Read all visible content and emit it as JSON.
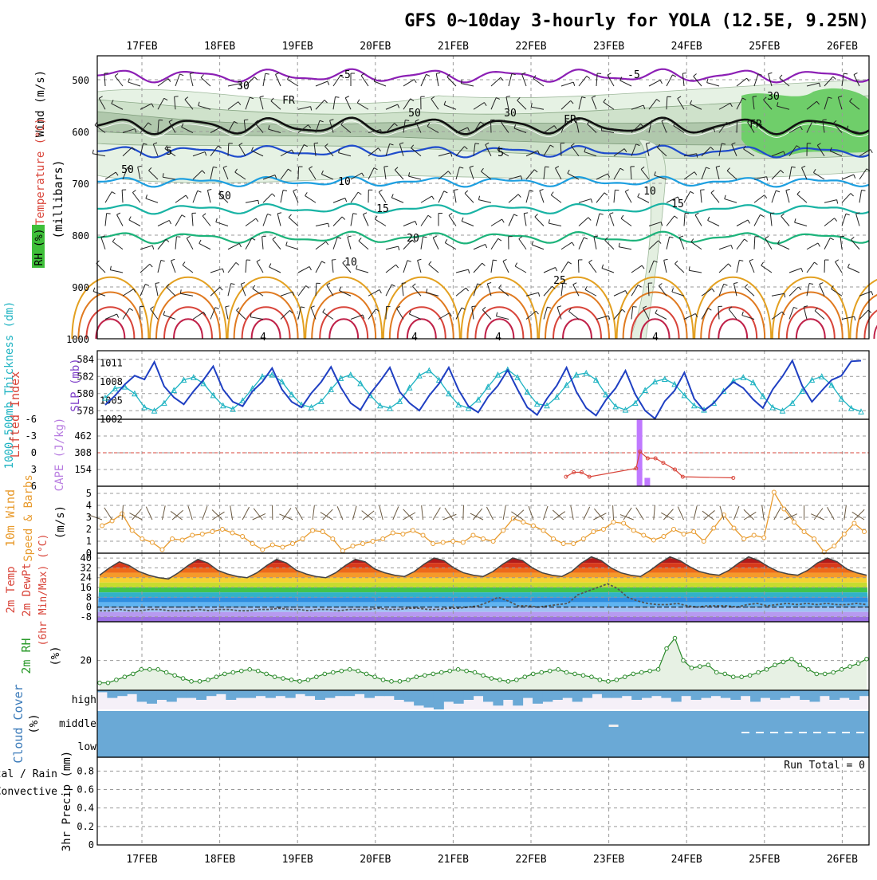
{
  "page": {
    "title": "GFS 0~10day 3-hourly for YOLA (12.5E, 9.25N)"
  },
  "chart_data": {
    "type": "meteogram",
    "dates": [
      "17FEB",
      "18FEB",
      "19FEB",
      "20FEB",
      "21FEB",
      "22FEB",
      "23FEB",
      "24FEB",
      "25FEB",
      "26FEB"
    ],
    "panels": {
      "upper": {
        "ylabel": "(millibars)",
        "legend": [
          "Wind (m/s)",
          "Temperature (°C)",
          "RH (%)"
        ],
        "pressure_ticks": [
          "500",
          "600",
          "700",
          "800",
          "900",
          "1000"
        ],
        "isotherm_labels": [
          "-5",
          "-5",
          "FR",
          "FR",
          "FR",
          "5",
          "5",
          "10",
          "10",
          "15",
          "15",
          "20",
          "25",
          "4",
          "4",
          "4",
          "4",
          "30",
          "30",
          "30",
          "50",
          "50",
          "50",
          "10"
        ]
      },
      "thickness_slp": {
        "label_left": "1000-500mb Thickness (dm)",
        "label_right": "SLP (mb)",
        "thickness_ticks": [
          "584",
          "582",
          "580",
          "578"
        ],
        "slp_ticks": [
          "1011",
          "1008",
          "1005",
          "1002"
        ],
        "thickness": [
          579.5,
          580.6,
          580.8,
          580.0,
          578.4,
          578.0,
          578.9,
          580.4,
          581.6,
          581.9,
          581.2,
          579.8,
          578.6,
          578.2,
          579.2,
          580.6,
          582.0,
          582.2,
          581.4,
          579.9,
          578.7,
          578.4,
          579.1,
          580.5,
          581.8,
          582.2,
          581.2,
          579.8,
          578.6,
          578.3,
          579.1,
          580.7,
          582.1,
          582.7,
          581.6,
          580.0,
          578.7,
          578.3,
          579.3,
          580.8,
          582.2,
          582.8,
          581.9,
          580.2,
          578.8,
          578.6,
          579.6,
          581.0,
          582.2,
          582.4,
          581.6,
          579.9,
          578.5,
          578.1,
          578.9,
          580.4,
          581.4,
          581.7,
          581.1,
          579.8,
          578.6,
          578.1,
          578.9,
          580.3,
          581.5,
          581.9,
          581.3,
          579.7,
          578.4,
          578.0,
          578.9,
          580.3,
          581.6,
          582.0,
          581.0,
          579.4,
          578.3,
          577.9
        ],
        "slp": [
          1004.3,
          1005.8,
          1007.6,
          1009.0,
          1008.4,
          1011.2,
          1007.3,
          1005.5,
          1004.4,
          1006.5,
          1008.3,
          1010.5,
          1006.8,
          1004.8,
          1004.1,
          1006.5,
          1008.0,
          1010.2,
          1006.8,
          1004.8,
          1003.9,
          1006.2,
          1008.0,
          1010.4,
          1007.1,
          1004.6,
          1003.5,
          1006.1,
          1008.1,
          1010.3,
          1006.4,
          1004.6,
          1003.4,
          1005.8,
          1007.7,
          1010.3,
          1006.7,
          1004.1,
          1003.1,
          1005.6,
          1007.4,
          1009.9,
          1006.8,
          1003.9,
          1002.7,
          1005.3,
          1007.4,
          1010.3,
          1006.4,
          1003.8,
          1002.6,
          1005.1,
          1007.0,
          1009.8,
          1006.0,
          1003.4,
          1002.1,
          1004.9,
          1006.6,
          1009.5,
          1005.3,
          1003.4,
          1004.6,
          1006.5,
          1008.0,
          1007.0,
          1005.2,
          1003.8,
          1006.8,
          1008.9,
          1011.4,
          1007.4,
          1004.8,
          1006.6,
          1008.3,
          1009.0,
          1011.3,
          1011.4
        ]
      },
      "cape_li": {
        "label_left": "Lifted Index",
        "label_right": "CAPE (J/kg)",
        "li_ticks": [
          "-6",
          "-3",
          "0",
          "3",
          "6"
        ],
        "cape_ticks": [
          "462",
          "308",
          "154"
        ],
        "cape_bars": [
          {
            "day": 6.4,
            "value": 616
          },
          {
            "day": 6.5,
            "value": 77
          }
        ],
        "lifted_index": [
          {
            "day": 5.45,
            "value": 4.3
          },
          {
            "day": 5.55,
            "value": 3.5
          },
          {
            "day": 5.65,
            "value": 3.5
          },
          {
            "day": 5.75,
            "value": 4.3
          },
          {
            "day": 6.35,
            "value": 2.8
          },
          {
            "day": 6.4,
            "value": -0.2
          },
          {
            "day": 6.5,
            "value": 1.0
          },
          {
            "day": 6.6,
            "value": 1.0
          },
          {
            "day": 6.7,
            "value": 1.8
          },
          {
            "day": 6.85,
            "value": 3.0
          },
          {
            "day": 6.95,
            "value": 4.3
          },
          {
            "day": 7.6,
            "value": 4.5
          }
        ]
      },
      "wind10m": {
        "label_left": "10m Wind",
        "label_mid": "Speed & Barbs",
        "ylabel": "(m/s)",
        "ticks": [
          "5",
          "4",
          "3",
          "2",
          "1",
          "0"
        ],
        "speed": [
          2.3,
          2.7,
          3.3,
          1.9,
          1.2,
          0.9,
          0.3,
          1.2,
          1.1,
          1.5,
          1.6,
          1.8,
          2.0,
          1.7,
          1.4,
          0.8,
          0.3,
          0.7,
          0.5,
          0.8,
          1.2,
          1.9,
          1.8,
          1.2,
          0.2,
          0.6,
          0.8,
          1.0,
          1.2,
          1.7,
          1.6,
          1.9,
          1.5,
          0.8,
          0.9,
          1.0,
          0.9,
          1.5,
          1.2,
          1.0,
          1.9,
          2.9,
          2.6,
          2.3,
          1.9,
          1.2,
          0.8,
          0.8,
          1.2,
          1.8,
          2.0,
          2.6,
          2.5,
          1.9,
          1.5,
          1.1,
          1.4,
          2.0,
          1.6,
          1.8,
          1.0,
          2.1,
          3.2,
          2.1,
          1.2,
          1.5,
          1.3,
          5.1,
          3.7,
          2.6,
          1.8,
          1.2,
          0.1,
          0.6,
          1.6,
          2.5,
          1.8
        ]
      },
      "temp": {
        "label_left": "2m Temp",
        "label_mid": "2m DewPt",
        "label_right": "(6hr Min/Max) (°C)",
        "ticks": [
          "40",
          "32",
          "24",
          "16",
          "8",
          "0",
          "-8"
        ],
        "temp": [
          26,
          32,
          37,
          34,
          29,
          26,
          24,
          23,
          28,
          34,
          39,
          36,
          30,
          27,
          25,
          24,
          28,
          34,
          39,
          36,
          30,
          27,
          25,
          24,
          28,
          34,
          39,
          37,
          31,
          28,
          26,
          25,
          29,
          35,
          40,
          38,
          32,
          28,
          26,
          25,
          29,
          35,
          40,
          38,
          32,
          28,
          26,
          25,
          29,
          36,
          41,
          38,
          32,
          28,
          26,
          25,
          30,
          36,
          41,
          38,
          33,
          29,
          27,
          26,
          30,
          36,
          41,
          38,
          33,
          29,
          27,
          26,
          30,
          36,
          40,
          37,
          31,
          28,
          26
        ],
        "dewpt": [
          -3,
          -3,
          -2,
          -3,
          -3,
          -2,
          -2,
          -3,
          -3,
          -3,
          -2,
          -3,
          -2,
          -2,
          -3,
          -3,
          -2,
          -2,
          -1,
          -2,
          -2,
          -3,
          -2,
          -2,
          -3,
          -2,
          -2,
          -2,
          -1,
          -2,
          -2,
          -1,
          -1,
          -2,
          -2,
          -1,
          -1,
          0,
          1,
          4,
          8,
          5,
          1,
          1,
          0,
          1,
          2,
          3,
          10,
          13,
          16,
          19,
          15,
          8,
          5,
          3,
          2,
          2,
          3,
          1,
          0,
          1,
          1,
          1,
          0,
          2,
          3,
          1,
          2,
          3,
          2,
          3,
          2,
          3,
          2,
          2,
          3,
          2
        ]
      },
      "rh2m": {
        "label_left": "2m RH",
        "ylabel": "(%)",
        "ticks": [
          "20"
        ],
        "rh": [
          5,
          5,
          7,
          9,
          11,
          14,
          14,
          14,
          12,
          10,
          8,
          6,
          6,
          7,
          9,
          11,
          12,
          13,
          14,
          13,
          11,
          9,
          8,
          7,
          6,
          7,
          9,
          11,
          12,
          13,
          14,
          13,
          11,
          9,
          7,
          6,
          6,
          7,
          9,
          10,
          11,
          12,
          13,
          14,
          13,
          12,
          10,
          8,
          7,
          6,
          7,
          9,
          11,
          12,
          13,
          14,
          12,
          11,
          10,
          9,
          7,
          6,
          7,
          9,
          11,
          12,
          13,
          14,
          28,
          35,
          20,
          15,
          16,
          17,
          12,
          11,
          9,
          9,
          10,
          12,
          14,
          17,
          19,
          21,
          17,
          14,
          11,
          11,
          12,
          14,
          16,
          18,
          21
        ]
      },
      "cloud": {
        "label_left": "Cloud Cover",
        "ylabel": "(%)",
        "levels": [
          "high",
          "middle",
          "low"
        ],
        "high": [
          10,
          40,
          30,
          20,
          60,
          70,
          50,
          60,
          40,
          40,
          50,
          30,
          20,
          50,
          40,
          40,
          30,
          40,
          30,
          40,
          20,
          30,
          50,
          40,
          30,
          30,
          20,
          40,
          30,
          30,
          50,
          60,
          80,
          90,
          100,
          60,
          70,
          50,
          30,
          60,
          80,
          50,
          80,
          40,
          70,
          60,
          50,
          40,
          60,
          40,
          20,
          40,
          40,
          30,
          50,
          40,
          30,
          40,
          60,
          30,
          50,
          40,
          30,
          40,
          50,
          30,
          60,
          40,
          50,
          40,
          30,
          50,
          60,
          30,
          50,
          40,
          50,
          30
        ],
        "middle_gap": [
          {
            "day": 6.0,
            "value": 30
          }
        ],
        "low": []
      },
      "precip": {
        "label_left": "Total / Rain",
        "label_left2": "Convective",
        "ylabel": "3hr Precip (mm)",
        "ticks": [
          "0.8",
          "0.6",
          "0.4",
          "0.2",
          "0"
        ],
        "run_total": "Run Total = 0",
        "values": []
      }
    }
  }
}
